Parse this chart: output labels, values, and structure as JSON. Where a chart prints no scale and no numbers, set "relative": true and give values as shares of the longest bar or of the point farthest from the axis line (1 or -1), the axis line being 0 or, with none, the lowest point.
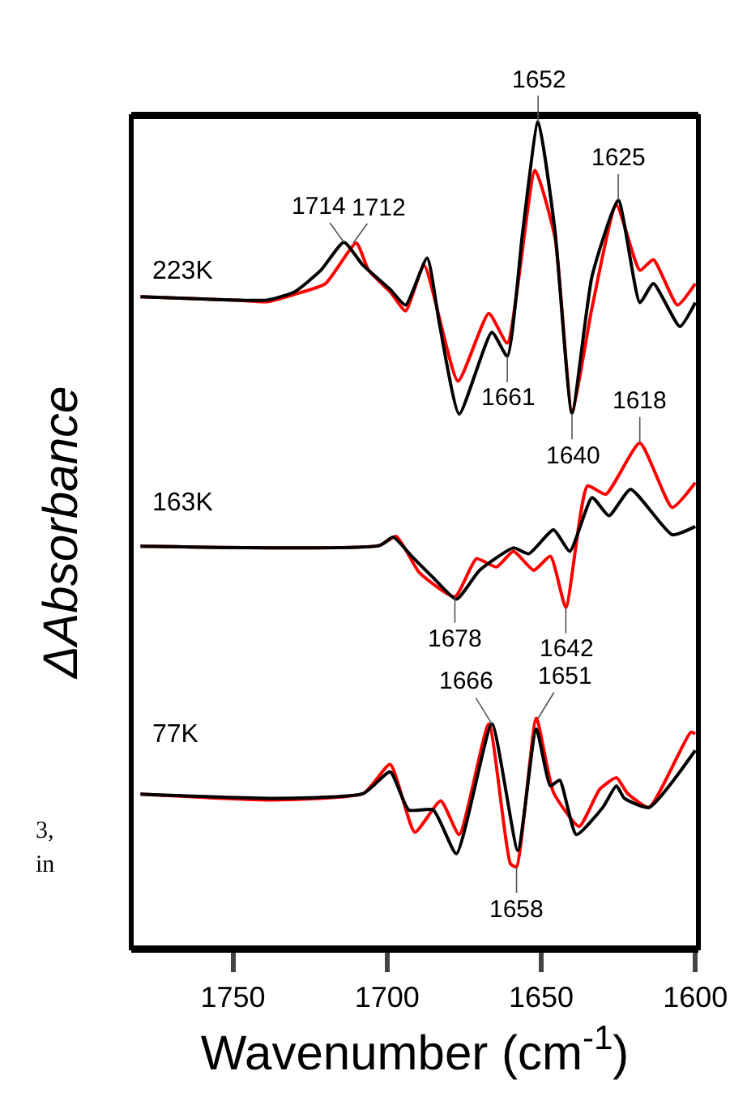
{
  "chart_data": {
    "type": "line",
    "relative": true,
    "xlabel": "Wavenumber (cm$^{-1}$)",
    "ylabel": "ΔAbsorbance",
    "xlim": [
      1783,
      1599
    ],
    "xticks": [
      1750,
      1700,
      1650,
      1600
    ],
    "marker": "none",
    "line_style": "solid",
    "series": [
      {
        "color": "#ff0000",
        "x": [
          1780,
          1749,
          1739,
          1730,
          1720,
          1710,
          1706,
          1699,
          1694,
          1688,
          1677,
          1667,
          1661,
          1652,
          1645.5,
          1640,
          1633.5,
          1625.6,
          1618,
          1613.6,
          1605.8,
          1600
        ],
        "values": [
          0.788,
          0.784,
          0.782,
          0.791,
          0.804,
          0.853,
          0.82,
          0.794,
          0.771,
          0.826,
          0.686,
          0.768,
          0.732,
          0.941,
          0.859,
          0.65,
          0.775,
          0.899,
          0.82,
          0.833,
          0.778,
          0.804
        ]
      },
      {
        "color": "#000000",
        "x": [
          1780,
          1749,
          1739,
          1730,
          1721.5,
          1714,
          1708,
          1699,
          1694,
          1687,
          1683,
          1676.6,
          1666,
          1661,
          1656,
          1651,
          1645.5,
          1640,
          1633.5,
          1625,
          1618,
          1613.6,
          1605,
          1600
        ],
        "values": [
          0.788,
          0.784,
          0.784,
          0.794,
          0.82,
          0.854,
          0.827,
          0.797,
          0.778,
          0.835,
          0.755,
          0.646,
          0.745,
          0.716,
          0.867,
          1.0,
          0.867,
          0.647,
          0.813,
          0.905,
          0.781,
          0.804,
          0.752,
          0.781
        ]
      },
      {
        "color": "#ff0000",
        "x": [
          1780,
          1702.5,
          1697,
          1689.5,
          1678,
          1671,
          1664.5,
          1659,
          1652.4,
          1647,
          1642,
          1635,
          1629,
          1618,
          1607.5,
          1600
        ],
        "values": [
          0.486,
          0.487,
          0.498,
          0.454,
          0.425,
          0.471,
          0.461,
          0.48,
          0.457,
          0.474,
          0.412,
          0.559,
          0.549,
          0.611,
          0.533,
          0.563
        ]
      },
      {
        "color": "#000000",
        "x": [
          1780,
          1702.5,
          1698,
          1692,
          1685,
          1677.5,
          1670,
          1659,
          1654,
          1646,
          1640.7,
          1633.5,
          1628,
          1621,
          1607.5,
          1600
        ],
        "values": [
          0.486,
          0.487,
          0.497,
          0.474,
          0.448,
          0.422,
          0.457,
          0.484,
          0.477,
          0.506,
          0.48,
          0.545,
          0.523,
          0.555,
          0.5,
          0.51
        ]
      },
      {
        "color": "#ff0000",
        "x": [
          1780,
          1737,
          1707.6,
          1699,
          1691,
          1682.6,
          1676.6,
          1667,
          1660,
          1658,
          1651.6,
          1646,
          1637.7,
          1631,
          1625.6,
          1622,
          1615,
          1601.5,
          1600
        ],
        "values": [
          0.186,
          0.179,
          0.187,
          0.222,
          0.14,
          0.178,
          0.137,
          0.271,
          0.102,
          0.098,
          0.278,
          0.188,
          0.147,
          0.192,
          0.206,
          0.187,
          0.17,
          0.261,
          0.259
        ]
      },
      {
        "color": "#000000",
        "x": [
          1780,
          1737,
          1707.6,
          1699,
          1693,
          1685,
          1677.5,
          1666,
          1657.6,
          1651.6,
          1647,
          1644,
          1638.6,
          1630,
          1625.6,
          1623,
          1615,
          1600
        ],
        "values": [
          0.186,
          0.181,
          0.187,
          0.213,
          0.167,
          0.167,
          0.114,
          0.271,
          0.118,
          0.265,
          0.196,
          0.203,
          0.137,
          0.17,
          0.196,
          0.181,
          0.17,
          0.239
        ]
      }
    ],
    "annotations": [
      "223K",
      "163K",
      "77K",
      {
        "text": "1714",
        "x": 1714,
        "y": 0.854
      },
      {
        "text": "1712",
        "x": 1711,
        "y": 0.853
      },
      {
        "text": "1652",
        "x": 1651,
        "y": 1.0
      },
      {
        "text": "1625",
        "x": 1625,
        "y": 0.905
      },
      {
        "text": "1661",
        "x": 1661,
        "y": 0.716
      },
      {
        "text": "1640",
        "x": 1640,
        "y": 0.647
      },
      {
        "text": "1618",
        "x": 1618,
        "y": 0.611
      },
      {
        "text": "1678",
        "x": 1678,
        "y": 0.425
      },
      {
        "text": "1642",
        "x": 1642,
        "y": 0.412
      },
      {
        "text": "1666",
        "x": 1666,
        "y": 0.271
      },
      {
        "text": "1651",
        "x": 1651,
        "y": 0.278
      },
      {
        "text": "1658",
        "x": 1658,
        "y": 0.098
      },
      "3,",
      "in"
    ]
  }
}
